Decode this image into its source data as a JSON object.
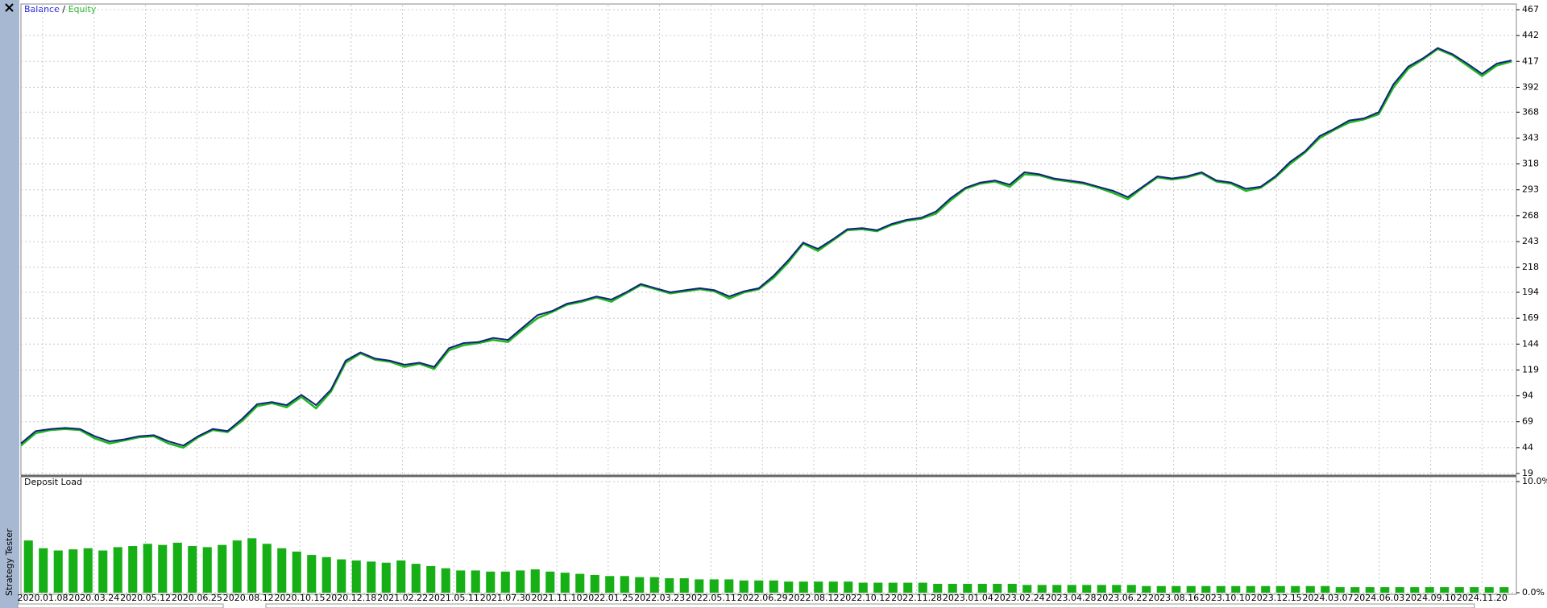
{
  "sidebar": {
    "label": "Strategy Tester"
  },
  "chart_data": [
    {
      "type": "line",
      "legend_separator": "/",
      "series": [
        {
          "name": "Balance",
          "color": "#12237a",
          "values": [
            48,
            60,
            62,
            63,
            62,
            55,
            50,
            52,
            55,
            56,
            50,
            46,
            55,
            62,
            60,
            72,
            86,
            88,
            85,
            95,
            85,
            100,
            128,
            136,
            130,
            128,
            124,
            126,
            122,
            140,
            145,
            146,
            150,
            148,
            160,
            172,
            176,
            183,
            186,
            190,
            187,
            194,
            202,
            198,
            194,
            196,
            198,
            196,
            190,
            195,
            198,
            210,
            225,
            242,
            236,
            245,
            255,
            256,
            254,
            260,
            264,
            266,
            272,
            285,
            295,
            300,
            302,
            298,
            310,
            308,
            304,
            302,
            300,
            296,
            292,
            286,
            296,
            306,
            304,
            306,
            310,
            302,
            300,
            294,
            296,
            306,
            320,
            330,
            345,
            352,
            360,
            362,
            368,
            395,
            412,
            420,
            430,
            424,
            415,
            405,
            415,
            418
          ]
        },
        {
          "name": "Equity",
          "color": "#1fb81f",
          "values": [
            46,
            58,
            61,
            62,
            61,
            53,
            48,
            51,
            54,
            55,
            48,
            44,
            54,
            61,
            59,
            70,
            84,
            87,
            83,
            93,
            82,
            98,
            126,
            135,
            129,
            127,
            122,
            125,
            120,
            138,
            143,
            145,
            148,
            146,
            158,
            169,
            175,
            182,
            185,
            189,
            185,
            193,
            201,
            197,
            193,
            195,
            197,
            195,
            188,
            194,
            197,
            208,
            223,
            241,
            234,
            244,
            254,
            255,
            253,
            259,
            263,
            265,
            270,
            283,
            294,
            299,
            301,
            296,
            308,
            307,
            303,
            301,
            299,
            295,
            290,
            284,
            295,
            305,
            303,
            305,
            309,
            301,
            299,
            292,
            295,
            305,
            318,
            329,
            343,
            351,
            358,
            361,
            366,
            392,
            410,
            419,
            429,
            423,
            413,
            403,
            413,
            417
          ]
        }
      ],
      "ylim": [
        19,
        467
      ],
      "yticks": [
        19,
        44,
        69,
        94,
        119,
        144,
        169,
        194,
        218,
        243,
        268,
        293,
        318,
        343,
        368,
        392,
        417,
        442,
        467
      ],
      "grid": true
    },
    {
      "type": "bar",
      "title": "Deposit Load",
      "color": "#16b016",
      "values": [
        4.7,
        4.0,
        3.8,
        3.9,
        4.0,
        3.8,
        4.1,
        4.2,
        4.4,
        4.3,
        4.5,
        4.2,
        4.1,
        4.3,
        4.7,
        4.9,
        4.4,
        4.0,
        3.7,
        3.4,
        3.2,
        3.0,
        2.9,
        2.8,
        2.7,
        2.9,
        2.6,
        2.4,
        2.2,
        2.0,
        2.0,
        1.9,
        1.9,
        2.0,
        2.1,
        1.9,
        1.8,
        1.7,
        1.6,
        1.5,
        1.5,
        1.4,
        1.4,
        1.3,
        1.3,
        1.2,
        1.2,
        1.2,
        1.1,
        1.1,
        1.1,
        1.0,
        1.0,
        1.0,
        1.0,
        1.0,
        0.9,
        0.9,
        0.9,
        0.9,
        0.9,
        0.8,
        0.8,
        0.8,
        0.8,
        0.8,
        0.8,
        0.7,
        0.7,
        0.7,
        0.7,
        0.7,
        0.7,
        0.7,
        0.7,
        0.6,
        0.6,
        0.6,
        0.6,
        0.6,
        0.6,
        0.6,
        0.6,
        0.6,
        0.6,
        0.6,
        0.6,
        0.6,
        0.5,
        0.5,
        0.5,
        0.5,
        0.5,
        0.5,
        0.5,
        0.5,
        0.5,
        0.5,
        0.5,
        0.5
      ],
      "ylim": [
        0,
        10
      ],
      "yticks": [
        {
          "value": 0,
          "label": "0.0%"
        },
        {
          "value": 10,
          "label": "10.0%"
        }
      ],
      "x_labels": [
        "2020.01.08",
        "2020.03.24",
        "2020.05.12",
        "2020.06.25",
        "2020.08.12",
        "2020.10.15",
        "2020.12.18",
        "2021.02.22",
        "2021.05.11",
        "2021.07.30",
        "2021.11.10",
        "2022.01.25",
        "2022.03.23",
        "2022.05.11",
        "2022.06.29",
        "2022.08.12",
        "2022.10.12",
        "2022.11.28",
        "2023.01.04",
        "2023.02.24",
        "2023.04.28",
        "2023.06.22",
        "2023.08.16",
        "2023.10.10",
        "2023.12.15",
        "2024.03.07",
        "2024.06.03",
        "2024.09.10",
        "2024.11.20"
      ],
      "grid": true
    }
  ]
}
